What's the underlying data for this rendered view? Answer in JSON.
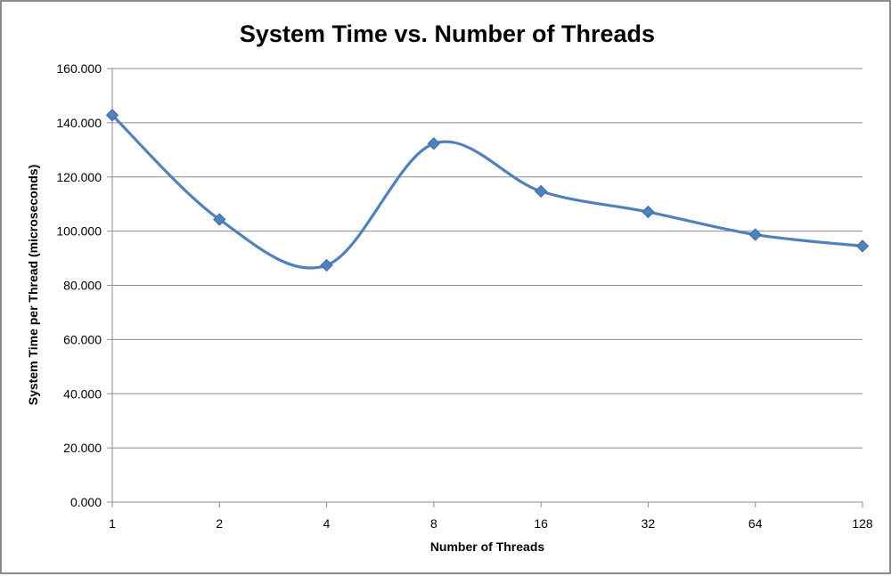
{
  "chart_data": {
    "type": "line",
    "title": "System Time vs. Number of Threads",
    "xlabel": "Number of Threads",
    "ylabel": "System Time per Thread (microseconds)",
    "categories": [
      "1",
      "2",
      "4",
      "8",
      "16",
      "32",
      "64",
      "128"
    ],
    "y_tick_labels": [
      "0.000",
      "20.000",
      "40.000",
      "60.000",
      "80.000",
      "100.000",
      "120.000",
      "140.000",
      "160.000"
    ],
    "ylim": [
      0,
      160
    ],
    "y_tick_step": 20,
    "grid": true,
    "legend": "none",
    "marker": "diamond",
    "smooth": true,
    "series": [
      {
        "values": [
          142.8,
          104.3,
          87.4,
          132.3,
          114.7,
          107.1,
          98.7,
          94.5
        ],
        "color": "#4f81bd"
      }
    ]
  }
}
